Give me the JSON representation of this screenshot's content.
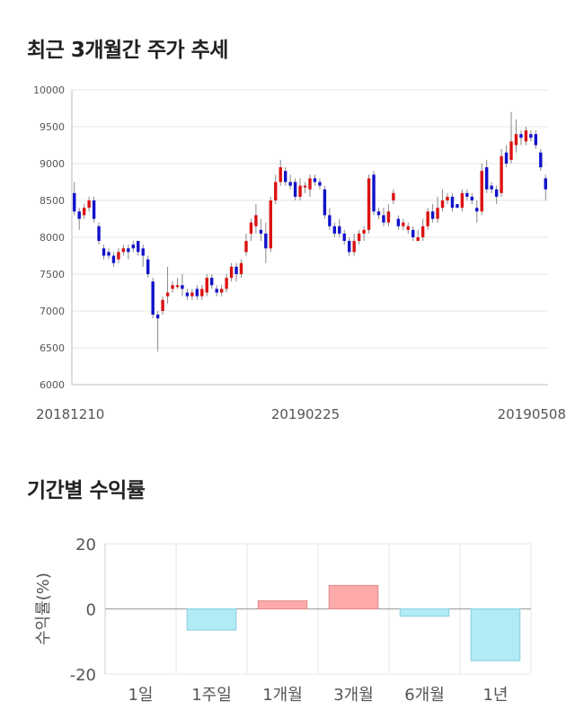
{
  "sections": {
    "price_title": "최근 3개월간 주가 추세",
    "return_title": "기간별 수익률"
  },
  "chart_data": [
    {
      "type": "candlestick",
      "title": "최근 3개월간 주가 추세",
      "ylim": [
        6000,
        10000
      ],
      "yticks": [
        6000,
        6500,
        7000,
        7500,
        8000,
        8500,
        9000,
        9500,
        10000
      ],
      "xtick_labels": [
        "20181210",
        "20190225",
        "20190508"
      ],
      "grid": true,
      "up_color": "#dd1111",
      "down_color": "#1111cc",
      "candles": [
        [
          8600,
          8350,
          8750,
          8300
        ],
        [
          8350,
          8250,
          8400,
          8100
        ],
        [
          8300,
          8400,
          8450,
          8250
        ],
        [
          8400,
          8500,
          8550,
          8350
        ],
        [
          8500,
          8250,
          8550,
          8200
        ],
        [
          8150,
          7950,
          8200,
          7900
        ],
        [
          7850,
          7750,
          7900,
          7700
        ],
        [
          7800,
          7750,
          7850,
          7700
        ],
        [
          7750,
          7650,
          7800,
          7600
        ],
        [
          7700,
          7800,
          7850,
          7650
        ],
        [
          7800,
          7850,
          7900,
          7750
        ],
        [
          7850,
          7800,
          7900,
          7700
        ],
        [
          7900,
          7850,
          7950,
          7800
        ],
        [
          7950,
          7800,
          7950,
          7750
        ],
        [
          7850,
          7750,
          7900,
          7600
        ],
        [
          7700,
          7500,
          7750,
          7450
        ],
        [
          7400,
          6950,
          7450,
          6900
        ],
        [
          6950,
          6900,
          7000,
          6450
        ],
        [
          7000,
          7150,
          7200,
          6950
        ],
        [
          7200,
          7250,
          7600,
          7100
        ],
        [
          7300,
          7350,
          7400,
          7250
        ],
        [
          7350,
          7350,
          7450,
          7300
        ],
        [
          7350,
          7300,
          7500,
          7200
        ],
        [
          7250,
          7200,
          7300,
          7150
        ],
        [
          7200,
          7250,
          7300,
          7150
        ],
        [
          7300,
          7200,
          7350,
          7150
        ],
        [
          7200,
          7300,
          7350,
          7150
        ],
        [
          7250,
          7450,
          7500,
          7200
        ],
        [
          7450,
          7350,
          7500,
          7300
        ],
        [
          7300,
          7250,
          7350,
          7200
        ],
        [
          7250,
          7300,
          7350,
          7200
        ],
        [
          7300,
          7450,
          7500,
          7250
        ],
        [
          7450,
          7600,
          7650,
          7400
        ],
        [
          7600,
          7500,
          7650,
          7400
        ],
        [
          7500,
          7650,
          7700,
          7450
        ],
        [
          7800,
          7950,
          8050,
          7750
        ],
        [
          8050,
          8200,
          8250,
          7950
        ],
        [
          8150,
          8300,
          8450,
          8050
        ],
        [
          8100,
          8050,
          8250,
          7950
        ],
        [
          8050,
          7850,
          8200,
          7650
        ],
        [
          7850,
          8500,
          8550,
          7800
        ],
        [
          8500,
          8750,
          8850,
          8450
        ],
        [
          8750,
          8950,
          9050,
          8700
        ],
        [
          8900,
          8750,
          8950,
          8700
        ],
        [
          8750,
          8700,
          8850,
          8650
        ],
        [
          8750,
          8550,
          8800,
          8500
        ],
        [
          8550,
          8700,
          8800,
          8500
        ],
        [
          8700,
          8700,
          8750,
          8600
        ],
        [
          8650,
          8800,
          8850,
          8550
        ],
        [
          8800,
          8750,
          8850,
          8700
        ],
        [
          8750,
          8700,
          8800,
          8650
        ],
        [
          8650,
          8300,
          8700,
          8250
        ],
        [
          8300,
          8150,
          8400,
          8100
        ],
        [
          8150,
          8050,
          8200,
          8000
        ],
        [
          8150,
          8050,
          8250,
          8000
        ],
        [
          8050,
          7950,
          8100,
          7900
        ],
        [
          7950,
          7800,
          8000,
          7750
        ],
        [
          7800,
          7950,
          8050,
          7750
        ],
        [
          7950,
          8050,
          8100,
          7900
        ],
        [
          8050,
          8100,
          8150,
          7950
        ],
        [
          8100,
          8800,
          8850,
          8050
        ],
        [
          8850,
          8350,
          8900,
          8300
        ],
        [
          8350,
          8300,
          8400,
          8250
        ],
        [
          8300,
          8200,
          8400,
          8150
        ],
        [
          8200,
          8350,
          8450,
          8150
        ],
        [
          8500,
          8600,
          8650,
          8450
        ],
        [
          8250,
          8150,
          8300,
          8100
        ],
        [
          8150,
          8200,
          8250,
          8100
        ],
        [
          8100,
          8150,
          8200,
          8050
        ],
        [
          8100,
          8000,
          8150,
          7950
        ],
        [
          7950,
          8000,
          8100,
          7950
        ],
        [
          8000,
          8150,
          8250,
          7950
        ],
        [
          8150,
          8350,
          8400,
          8100
        ],
        [
          8350,
          8250,
          8450,
          8200
        ],
        [
          8250,
          8400,
          8550,
          8200
        ],
        [
          8400,
          8500,
          8650,
          8350
        ],
        [
          8500,
          8550,
          8600,
          8450
        ],
        [
          8550,
          8400,
          8600,
          8350
        ],
        [
          8450,
          8400,
          8450,
          8400
        ],
        [
          8400,
          8600,
          8650,
          8350
        ],
        [
          8600,
          8550,
          8650,
          8500
        ],
        [
          8550,
          8500,
          8600,
          8450
        ],
        [
          8400,
          8350,
          8500,
          8200
        ],
        [
          8350,
          8900,
          9000,
          8300
        ],
        [
          8950,
          8650,
          9050,
          8600
        ],
        [
          8700,
          8650,
          8750,
          8600
        ],
        [
          8650,
          8550,
          8700,
          8450
        ],
        [
          8600,
          9100,
          9200,
          8550
        ],
        [
          9150,
          9000,
          9250,
          8950
        ],
        [
          9050,
          9300,
          9700,
          9000
        ],
        [
          9250,
          9400,
          9600,
          9150
        ],
        [
          9400,
          9350,
          9450,
          9250
        ],
        [
          9300,
          9450,
          9500,
          9250
        ],
        [
          9400,
          9350,
          9450,
          9300
        ],
        [
          9400,
          9250,
          9450,
          9200
        ],
        [
          9150,
          8950,
          9200,
          8900
        ],
        [
          8800,
          8650,
          8850,
          8500
        ]
      ]
    },
    {
      "type": "bar",
      "title": "기간별 수익률",
      "ylabel": "수익률(%)",
      "ylim": [
        -20,
        20
      ],
      "yticks": [
        -20,
        0,
        20
      ],
      "categories": [
        "1일",
        "1주일",
        "1개월",
        "3개월",
        "6개월",
        "1년"
      ],
      "values": [
        0,
        -6.5,
        2.5,
        7.2,
        -2.2,
        -15.9
      ],
      "positive_color": "#ffaaaa",
      "negative_color": "#b2ebf5",
      "grid": true
    }
  ]
}
